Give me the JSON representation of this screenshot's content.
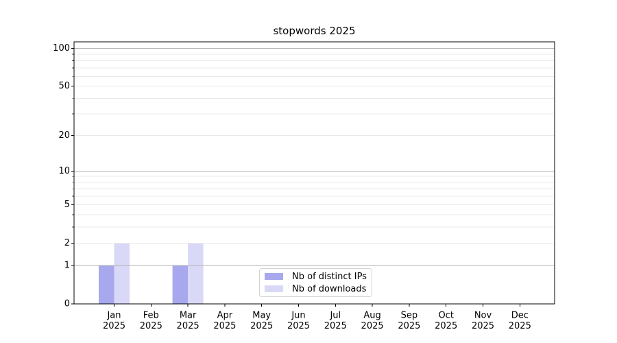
{
  "chart_data": {
    "type": "bar",
    "title": "stopwords 2025",
    "categories": [
      "Jan",
      "Feb",
      "Mar",
      "Apr",
      "May",
      "Jun",
      "Jul",
      "Aug",
      "Sep",
      "Oct",
      "Nov",
      "Dec"
    ],
    "x_tick_second_line": "2025",
    "series": [
      {
        "name": "Nb of distinct IPs",
        "color": "#a8a8ee",
        "values": [
          1,
          0,
          1,
          0,
          0,
          0,
          0,
          0,
          0,
          0,
          0,
          0
        ]
      },
      {
        "name": "Nb of downloads",
        "color": "#d9d9f7",
        "values": [
          2,
          0,
          2,
          0,
          0,
          0,
          0,
          0,
          0,
          0,
          0,
          0
        ]
      }
    ],
    "yscale": "log1p",
    "ylim": [
      0,
      115
    ],
    "yticks": [
      0,
      1,
      2,
      5,
      10,
      20,
      50,
      100
    ],
    "yticks_minor": [
      3,
      4,
      6,
      7,
      8,
      9,
      30,
      40,
      60,
      70,
      80,
      90
    ],
    "grid": true,
    "legend_position": "lower center"
  },
  "colors": {
    "major_grid": "#b2b2b2",
    "minor_grid": "#e9e9e9",
    "spine": "#000000",
    "text": "#000000",
    "background": "#ffffff"
  }
}
